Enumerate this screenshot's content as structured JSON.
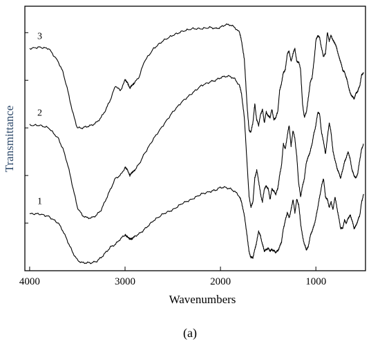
{
  "caption": "(a)",
  "chart_data": {
    "type": "line",
    "xlabel": "Wavenumbers",
    "ylabel": "Transmittance",
    "xlim": [
      4050,
      480
    ],
    "ylim": [
      0,
      100
    ],
    "x_ticks": [
      4000,
      3000,
      2000,
      1000
    ],
    "x_tick_labels": [
      "4000",
      "3000",
      "2000",
      "1000"
    ],
    "y_ticks": [
      90,
      72,
      54,
      36,
      18
    ],
    "y_tick_labels": [
      "",
      "",
      "",
      "",
      ""
    ],
    "grid": false,
    "series": [
      {
        "name": "1",
        "x": [
          4000,
          3900,
          3800,
          3700,
          3650,
          3600,
          3550,
          3500,
          3450,
          3400,
          3350,
          3300,
          3250,
          3200,
          3150,
          3100,
          3050,
          3000,
          2980,
          2950,
          2930,
          2900,
          2850,
          2800,
          2700,
          2600,
          2500,
          2400,
          2300,
          2200,
          2100,
          2050,
          2000,
          1950,
          1900,
          1850,
          1800,
          1780,
          1750,
          1720,
          1700,
          1680,
          1660,
          1640,
          1620,
          1600,
          1580,
          1560,
          1540,
          1520,
          1500,
          1480,
          1460,
          1440,
          1420,
          1400,
          1380,
          1360,
          1340,
          1320,
          1300,
          1280,
          1260,
          1240,
          1220,
          1200,
          1180,
          1160,
          1140,
          1120,
          1100,
          1080,
          1060,
          1040,
          1020,
          1000,
          980,
          960,
          940,
          920,
          900,
          880,
          860,
          840,
          820,
          800,
          780,
          760,
          740,
          720,
          700,
          680,
          660,
          640,
          620,
          600,
          580,
          560,
          540,
          520,
          500
        ],
        "y": [
          21.5,
          21.5,
          20.5,
          18,
          15,
          11,
          7,
          4,
          3,
          3,
          3,
          3.5,
          5,
          7,
          9,
          10,
          12,
          13.5,
          13,
          12,
          12,
          13,
          14,
          15.5,
          19,
          21.5,
          23,
          25.5,
          27,
          29,
          30,
          30.5,
          31.5,
          31.5,
          31,
          30,
          28,
          26,
          21,
          13,
          7,
          5,
          5,
          8,
          11,
          15,
          13,
          10,
          7.5,
          8,
          8.5,
          7.5,
          8,
          7.5,
          7,
          7.5,
          9,
          11,
          16,
          19,
          22,
          20,
          23,
          27,
          22,
          27,
          25,
          18,
          13,
          10,
          8,
          9,
          13,
          15,
          17,
          20,
          24,
          28,
          32,
          35,
          28,
          27,
          24,
          26,
          23,
          28,
          24,
          20,
          16,
          16,
          19,
          18,
          20,
          21,
          19,
          16,
          17,
          19,
          21,
          26,
          29
        ]
      },
      {
        "name": "2",
        "x": [
          4000,
          3900,
          3800,
          3700,
          3650,
          3600,
          3550,
          3500,
          3450,
          3400,
          3350,
          3300,
          3250,
          3200,
          3150,
          3100,
          3050,
          3000,
          2980,
          2950,
          2930,
          2900,
          2850,
          2800,
          2700,
          2600,
          2500,
          2400,
          2300,
          2200,
          2100,
          2050,
          2000,
          1950,
          1900,
          1850,
          1800,
          1780,
          1750,
          1720,
          1700,
          1680,
          1660,
          1640,
          1620,
          1600,
          1580,
          1560,
          1540,
          1520,
          1500,
          1480,
          1460,
          1440,
          1420,
          1400,
          1380,
          1360,
          1340,
          1320,
          1300,
          1280,
          1260,
          1240,
          1220,
          1200,
          1180,
          1160,
          1140,
          1120,
          1100,
          1080,
          1060,
          1040,
          1020,
          1000,
          980,
          960,
          940,
          920,
          900,
          880,
          860,
          840,
          820,
          800,
          780,
          760,
          740,
          720,
          700,
          680,
          660,
          640,
          620,
          600,
          580,
          560,
          540,
          520,
          500
        ],
        "y": [
          55,
          55,
          54,
          50,
          46,
          40,
          32,
          24,
          21,
          20,
          20,
          21,
          23,
          27,
          31,
          35,
          36,
          39,
          38.5,
          36,
          37,
          38,
          40.5,
          44,
          50,
          55,
          60,
          64,
          67,
          70,
          71.5,
          72,
          73,
          73.5,
          73.5,
          72.5,
          70,
          67,
          58,
          40,
          28,
          24,
          26,
          35,
          38,
          34,
          29,
          26,
          31,
          32,
          31,
          27,
          31,
          30,
          29,
          31,
          36,
          40,
          48,
          46,
          51,
          55,
          47,
          53,
          50,
          43,
          33,
          28,
          32,
          35,
          41,
          43,
          45,
          48,
          52,
          55,
          60,
          59,
          52,
          49,
          44,
          50,
          56,
          52,
          45,
          42,
          39,
          37,
          35,
          38,
          41,
          43,
          45,
          42,
          38,
          36,
          35,
          37,
          42,
          46,
          48
        ]
      },
      {
        "name": "3",
        "x": [
          4000,
          3900,
          3800,
          3700,
          3650,
          3600,
          3550,
          3500,
          3450,
          3400,
          3350,
          3300,
          3250,
          3200,
          3150,
          3100,
          3050,
          3000,
          2980,
          2950,
          2930,
          2900,
          2850,
          2800,
          2700,
          2600,
          2500,
          2400,
          2300,
          2200,
          2100,
          2050,
          2000,
          1950,
          1900,
          1850,
          1800,
          1780,
          1750,
          1720,
          1700,
          1680,
          1660,
          1640,
          1620,
          1600,
          1580,
          1560,
          1540,
          1520,
          1500,
          1480,
          1460,
          1440,
          1420,
          1400,
          1380,
          1360,
          1340,
          1320,
          1300,
          1280,
          1260,
          1240,
          1220,
          1200,
          1180,
          1160,
          1140,
          1120,
          1100,
          1080,
          1060,
          1040,
          1020,
          1000,
          980,
          960,
          940,
          920,
          900,
          880,
          860,
          840,
          820,
          800,
          780,
          760,
          740,
          720,
          700,
          680,
          660,
          640,
          620,
          600,
          580,
          560,
          540,
          520,
          500
        ],
        "y": [
          84,
          84.5,
          84,
          79,
          75,
          68,
          60,
          54,
          54,
          54.5,
          55,
          56,
          58,
          61,
          65,
          70,
          68,
          72,
          71.5,
          69,
          70,
          71,
          73.5,
          79,
          84,
          87,
          89,
          90.5,
          91.5,
          91.5,
          92,
          91.5,
          92,
          93,
          93,
          92,
          90,
          87,
          80,
          62,
          53,
          52.5,
          56,
          63,
          57,
          55,
          59,
          61,
          56,
          60,
          58.5,
          58,
          61,
          57,
          58,
          60,
          68,
          71,
          75,
          76,
          82,
          83,
          79,
          82,
          84,
          79,
          79,
          76,
          63,
          58,
          60,
          65,
          71,
          73,
          79,
          87,
          89,
          88,
          84,
          81,
          82,
          90,
          87,
          89,
          87,
          86,
          84,
          81,
          79,
          76,
          75,
          73,
          70,
          67,
          66,
          65,
          67,
          68,
          70,
          74,
          75
        ]
      }
    ]
  }
}
